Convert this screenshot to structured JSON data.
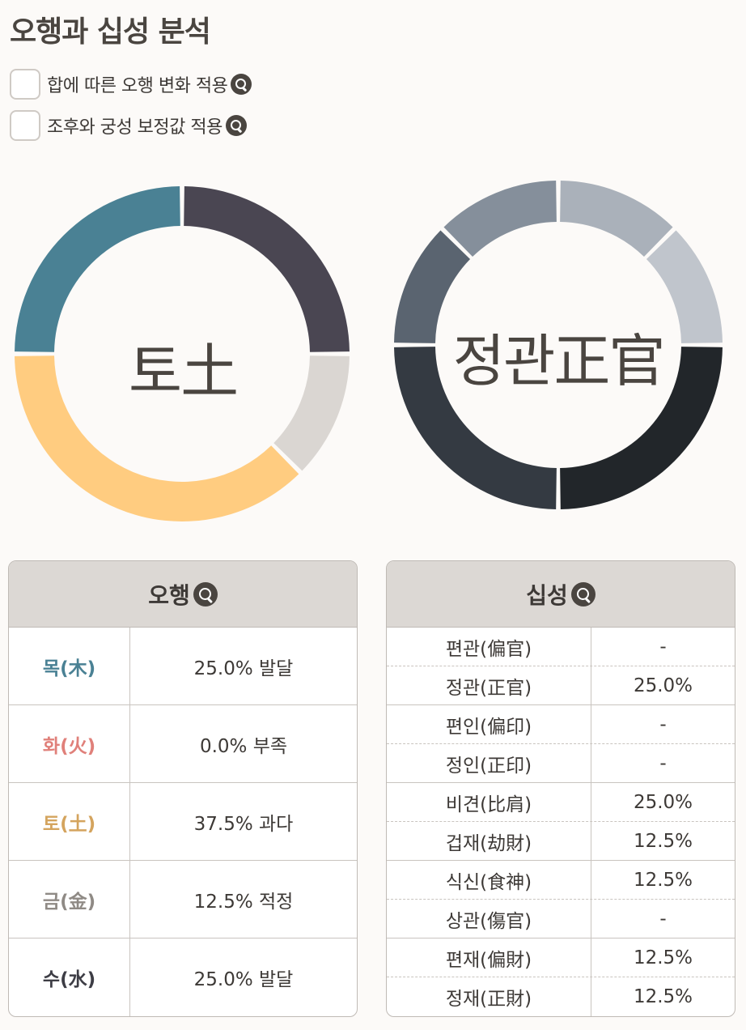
{
  "title": "오행과 십성 분석",
  "options": [
    {
      "label": "합에 따른 오행 변화 적용",
      "checked": false
    },
    {
      "label": "조후와 궁성 보정값 적용",
      "checked": false
    }
  ],
  "chart_data": [
    {
      "type": "pie",
      "center_label": "토土",
      "start_angle_deg": 0,
      "slices": [
        {
          "name": "금(金)",
          "value": 12.5,
          "color": "#dad6d2"
        },
        {
          "name": "토(土)",
          "value": 37.5,
          "color": "#ffcc80"
        },
        {
          "name": "목(木)",
          "value": 25.0,
          "color": "#4a8194"
        },
        {
          "name": "수(水)",
          "value": 25.0,
          "color": "#4a4652"
        },
        {
          "name": "화(火)",
          "value": 0.0,
          "color": "#e0807a"
        }
      ]
    },
    {
      "type": "pie",
      "center_label": "정관正官",
      "start_angle_deg": 0,
      "slices": [
        {
          "name": "정관(正官)",
          "value": 25.0,
          "color": "#22262a"
        },
        {
          "name": "비견(比肩)",
          "value": 25.0,
          "color": "#343a42"
        },
        {
          "name": "겁재(劫財)",
          "value": 12.5,
          "color": "#5a6470"
        },
        {
          "name": "식신(食神)",
          "value": 12.5,
          "color": "#858f9b"
        },
        {
          "name": "편재(偏財)",
          "value": 12.5,
          "color": "#aab1ba"
        },
        {
          "name": "정재(正財)",
          "value": 12.5,
          "color": "#c0c5cc"
        }
      ]
    }
  ],
  "ohaeng_table": {
    "header": "오행",
    "rows": [
      {
        "name": "목(木)",
        "value": "25.0% 발달",
        "color": "#4a8194"
      },
      {
        "name": "화(火)",
        "value": "0.0% 부족",
        "color": "#e0807a"
      },
      {
        "name": "토(土)",
        "value": "37.5% 과다",
        "color": "#d4a45e"
      },
      {
        "name": "금(金)",
        "value": "12.5% 적정",
        "color": "#8f8a85"
      },
      {
        "name": "수(水)",
        "value": "25.0% 발달",
        "color": "#3d3d45"
      }
    ]
  },
  "sipseong_table": {
    "header": "십성",
    "rows": [
      {
        "name": "편관(偏官)",
        "value": "-"
      },
      {
        "name": "정관(正官)",
        "value": "25.0%"
      },
      {
        "name": "편인(偏印)",
        "value": "-"
      },
      {
        "name": "정인(正印)",
        "value": "-"
      },
      {
        "name": "비견(比肩)",
        "value": "25.0%"
      },
      {
        "name": "겁재(劫財)",
        "value": "12.5%"
      },
      {
        "name": "식신(食神)",
        "value": "12.5%"
      },
      {
        "name": "상관(傷官)",
        "value": "-"
      },
      {
        "name": "편재(偏財)",
        "value": "12.5%"
      },
      {
        "name": "정재(正財)",
        "value": "12.5%"
      }
    ]
  }
}
